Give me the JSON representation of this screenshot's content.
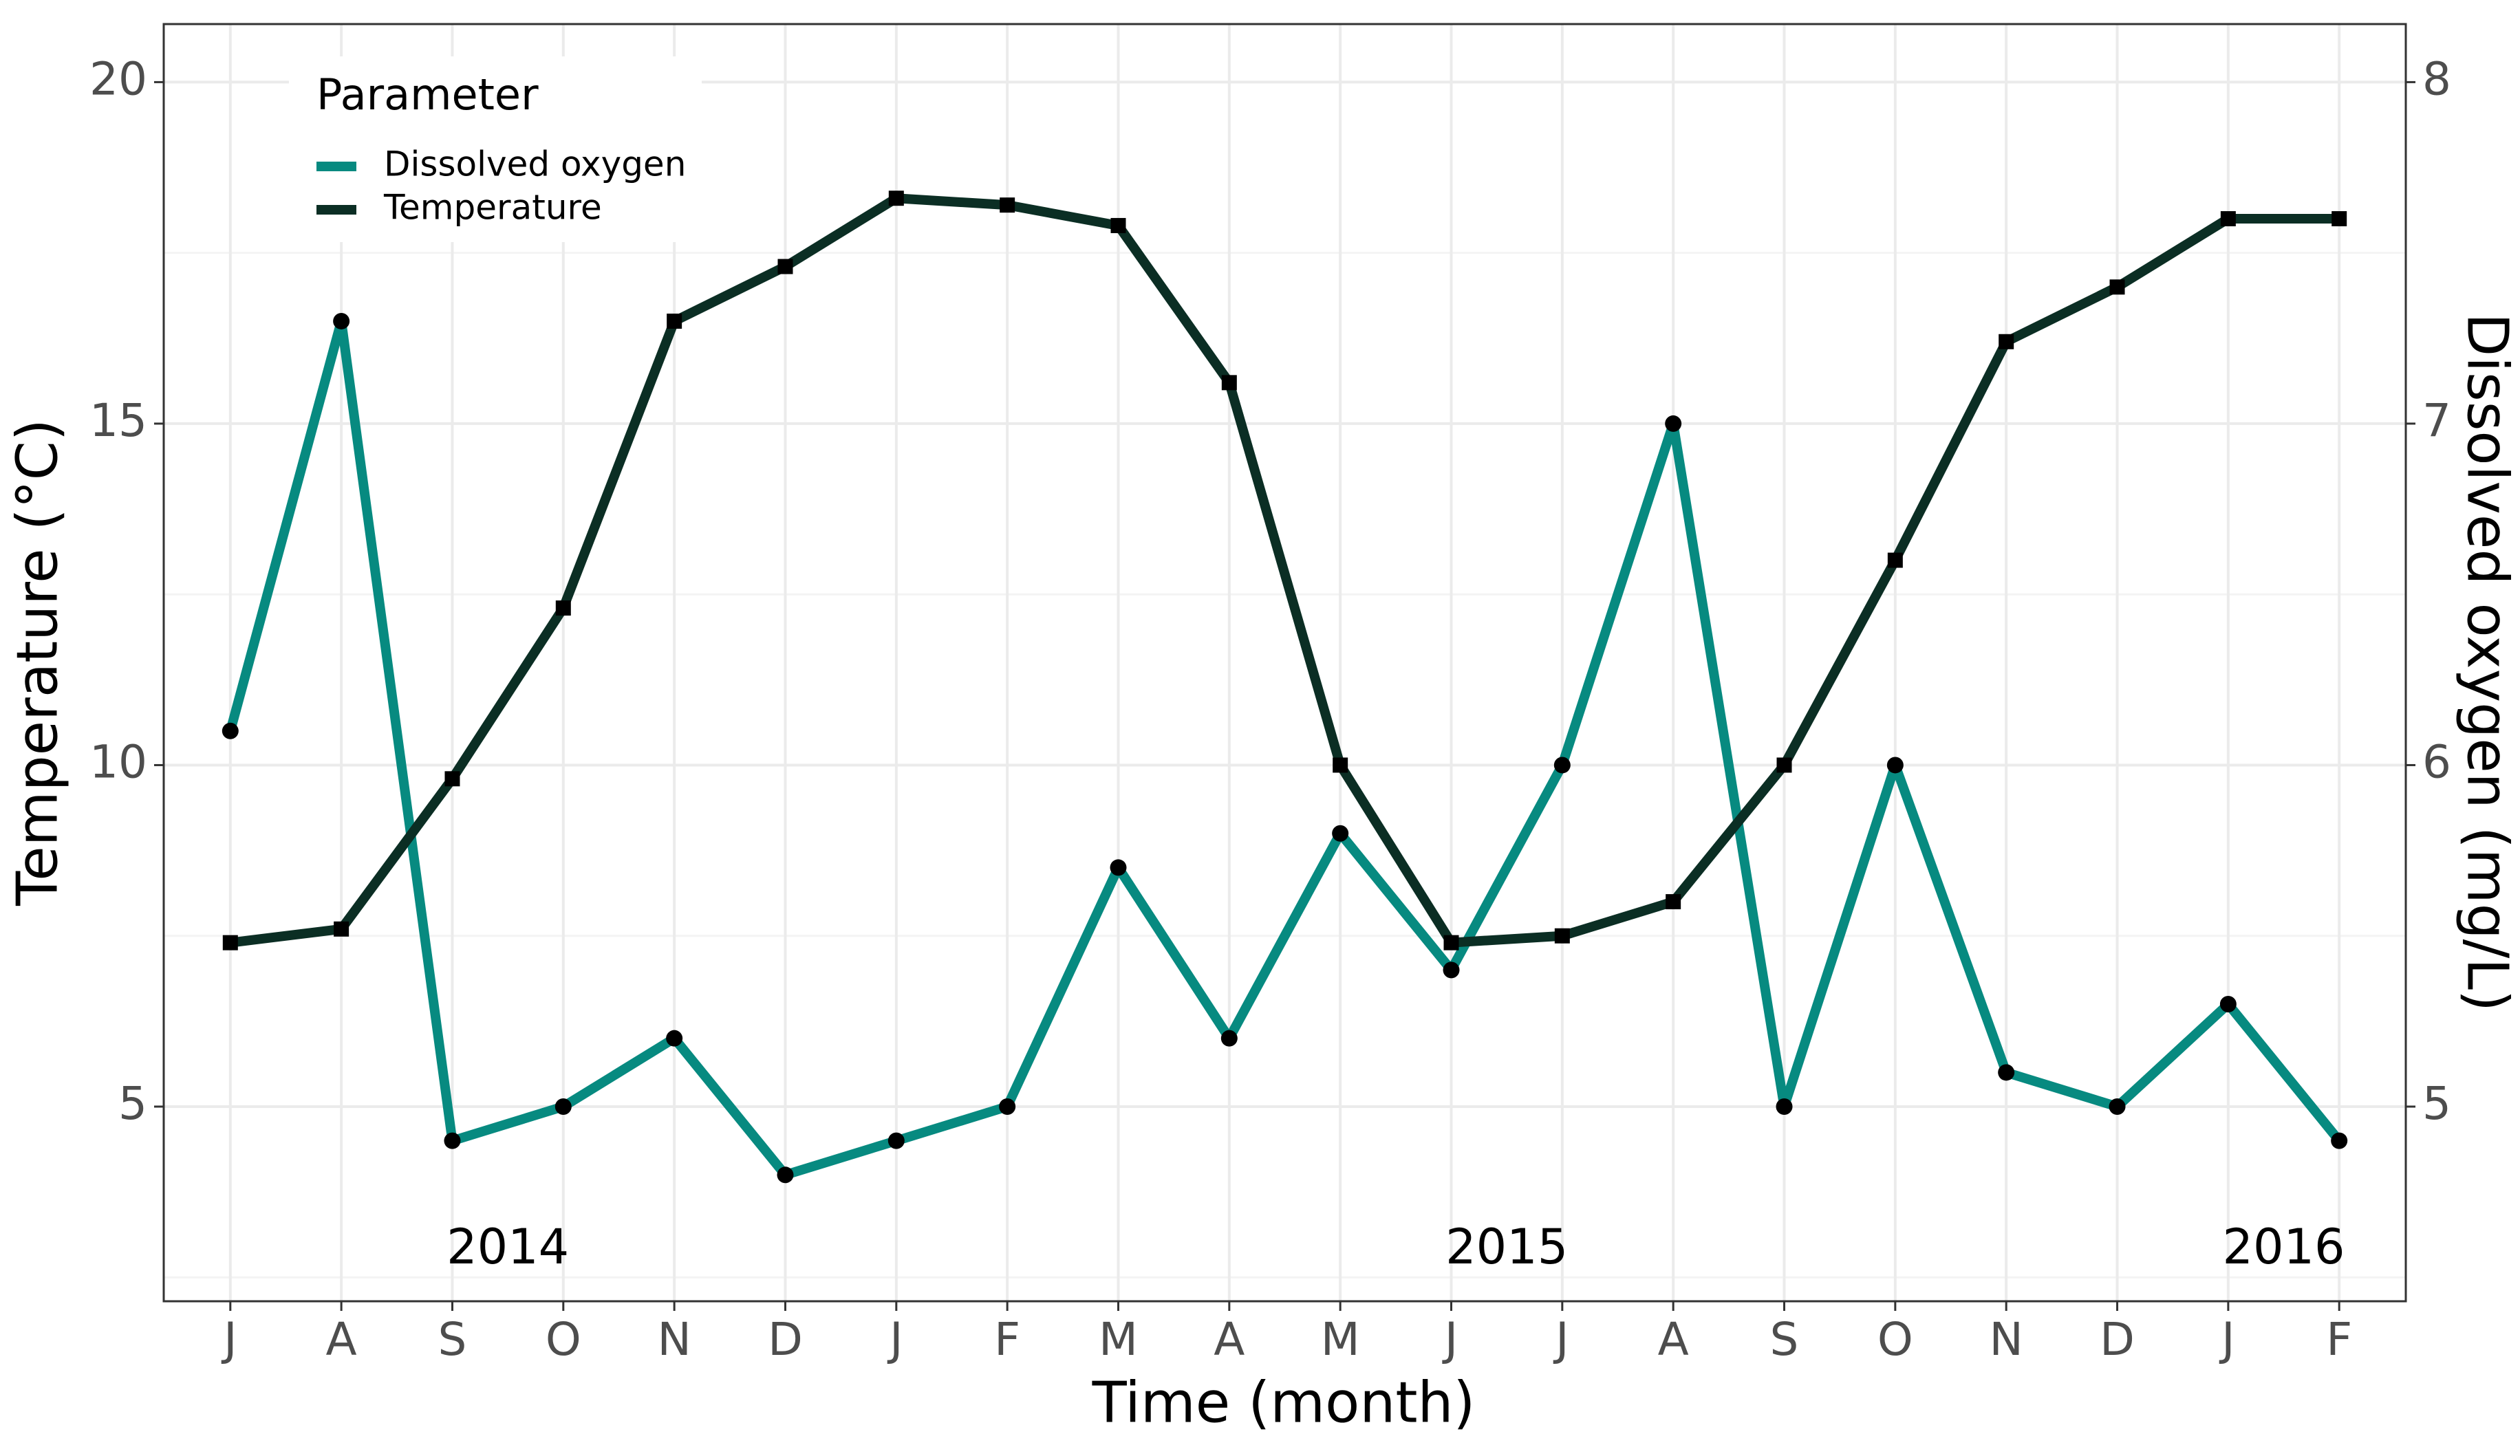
{
  "chart_data": {
    "type": "line",
    "x_label": "Time (month)",
    "y_label": "Temperature (°C)",
    "y2_label": "Dissolved oxygen (mg/L)",
    "legend_title": "Parameter",
    "legend": "top-left",
    "categories": [
      "J",
      "A",
      "S",
      "O",
      "N",
      "D",
      "J",
      "F",
      "M",
      "A",
      "M",
      "J",
      "J",
      "A",
      "S",
      "O",
      "N",
      "D",
      "J",
      "F"
    ],
    "annotations": [
      "2014",
      "2015",
      "2016"
    ],
    "series": [
      {
        "name": "Dissolved oxygen",
        "color": "#078a80",
        "marker": "circle",
        "axis": "y2",
        "values": [
          6.1,
          7.3,
          4.9,
          5.0,
          5.2,
          4.8,
          4.9,
          5.0,
          5.7,
          5.2,
          5.8,
          5.4,
          6.0,
          7.0,
          5.0,
          6.0,
          5.1,
          5.0,
          5.3,
          4.9
        ]
      },
      {
        "name": "Temperature",
        "color": "#0b2e24",
        "marker": "square",
        "values": [
          7.4,
          7.6,
          9.8,
          12.3,
          16.5,
          17.3,
          18.3,
          18.2,
          17.9,
          15.6,
          10,
          7.4,
          7.5,
          8.0,
          10,
          13,
          16.2,
          17,
          18,
          18
        ]
      }
    ],
    "ylim": [
      2.15,
      20.85
    ],
    "yticks": [
      5,
      10,
      15,
      20
    ],
    "yminorticks": [
      2.5,
      7.5,
      12.5,
      17.5
    ],
    "y2lim": [
      4.43,
      8.17
    ],
    "y2ticks": [
      5,
      6,
      7,
      8
    ],
    "grid": true
  }
}
